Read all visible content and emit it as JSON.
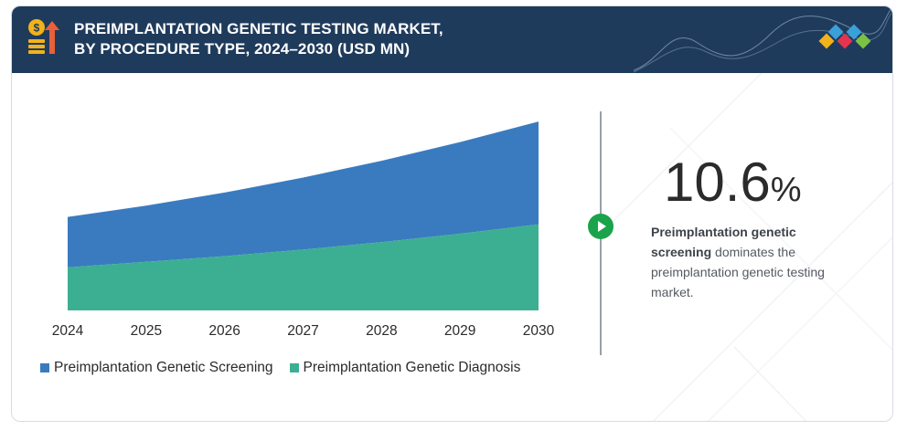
{
  "header": {
    "title_line1": "PREIMPLANTATION GENETIC TESTING MARKET,",
    "title_line2": "BY PROCEDURE TYPE, 2024–2030 (USD MN)"
  },
  "stat": {
    "value": "10.6",
    "unit": "%",
    "desc_bold": "Preimplantation genetic screening",
    "desc_rest": " dominates the preimplantation genetic testing market."
  },
  "icons": {
    "header_icon": "money-growth-icon",
    "play_icon": "play-icon"
  },
  "colors": {
    "header_bg": "#1f3b5c",
    "screening": "#3a7bbf",
    "diagnosis": "#3caf93",
    "play": "#1aa34a"
  },
  "chart_data": {
    "type": "area",
    "stacked": true,
    "x": [
      "2024",
      "2025",
      "2026",
      "2027",
      "2028",
      "2029",
      "2030"
    ],
    "series": [
      {
        "name": "Preimplantation Genetic Diagnosis",
        "color": "#3caf93",
        "values": [
          46,
          52,
          58,
          65,
          73,
          82,
          92
        ]
      },
      {
        "name": "Preimplantation Genetic Screening",
        "color": "#3a7bbf",
        "values": [
          54,
          60,
          68,
          77,
          87,
          98,
          110
        ]
      }
    ],
    "xlabel": "",
    "ylabel": "",
    "ylim": [
      0,
      205
    ],
    "grid": false,
    "legend_position": "bottom"
  }
}
